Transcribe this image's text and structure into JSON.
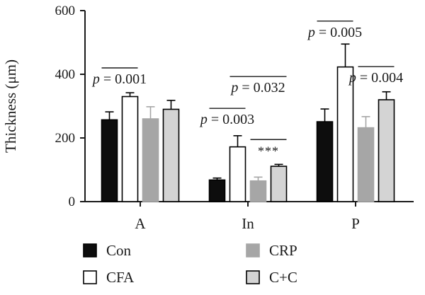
{
  "chart_data": {
    "type": "bar",
    "xlabel": "",
    "ylabel": "Thickness (μm)",
    "ylim": [
      0,
      600
    ],
    "yticks": [
      0,
      200,
      400,
      600
    ],
    "ytick_labels": [
      "0",
      "200",
      "400",
      "600"
    ],
    "categories": [
      "A",
      "In",
      "P"
    ],
    "grid": false,
    "legend_placement": "bottom",
    "series": [
      {
        "name": "Con",
        "values": [
          257,
          68,
          251
        ],
        "errors": [
          25,
          6,
          40
        ],
        "color": "#000000",
        "fill": "#0d0d0d"
      },
      {
        "name": "CFA",
        "values": [
          330,
          172,
          423
        ],
        "errors": [
          12,
          35,
          72
        ],
        "color": "#000000",
        "fill": "#ffffff"
      },
      {
        "name": "CRP",
        "values": [
          260,
          65,
          232
        ],
        "errors": [
          38,
          12,
          35
        ],
        "color": "#a6a6a6",
        "fill": "#a6a6a6"
      },
      {
        "name": "C+C",
        "values": [
          290,
          111,
          320
        ],
        "errors": [
          28,
          6,
          25
        ],
        "color": "#000000",
        "fill": "#d4d4d4"
      }
    ],
    "annotations": [
      {
        "category": "A",
        "from_series": 0,
        "to_series": 1,
        "line_y": 420,
        "p_prefix": "p",
        "p_value": " = 0.001"
      },
      {
        "category": "In",
        "from_series": 0,
        "to_series": 1,
        "line_y": 293,
        "p_prefix": "p",
        "p_value": " = 0.003"
      },
      {
        "category": "In",
        "from_series": 1,
        "to_series": 3,
        "line_y": 393,
        "p_prefix": "p",
        "p_value": " = 0.032"
      },
      {
        "category": "In",
        "from_series": 2,
        "to_series": 3,
        "line_y": 195,
        "text": "***"
      },
      {
        "category": "P",
        "from_series": 0,
        "to_series": 1,
        "line_y": 567,
        "p_prefix": "p",
        "p_value": " = 0.005"
      },
      {
        "category": "P",
        "from_series": 2,
        "to_series": 3,
        "line_y": 424,
        "p_prefix": "p",
        "p_value": " = 0.004"
      }
    ]
  }
}
